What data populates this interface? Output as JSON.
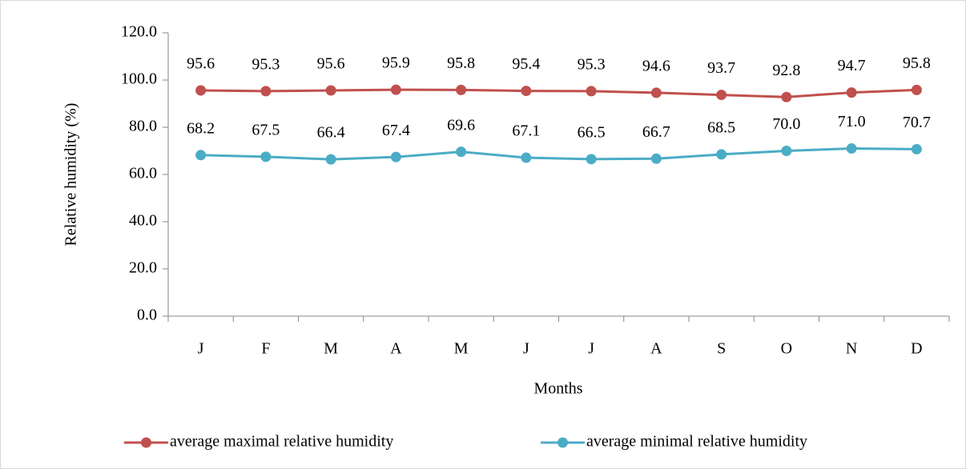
{
  "chart_data": {
    "type": "line",
    "x_label": "Months",
    "y_label": "Relative humidity (%)",
    "categories": [
      "J",
      "F",
      "M",
      "A",
      "M",
      "J",
      "J",
      "A",
      "S",
      "O",
      "N",
      "D"
    ],
    "series": [
      {
        "name": "average maximal relative humidity",
        "color": "#c0504d",
        "values": [
          95.6,
          95.3,
          95.6,
          95.9,
          95.8,
          95.4,
          95.3,
          94.6,
          93.7,
          92.8,
          94.7,
          95.8
        ],
        "value_labels": [
          "95.6",
          "95.3",
          "95.6",
          "95.9",
          "95.8",
          "95.4",
          "95.3",
          "94.6",
          "93.7",
          "92.8",
          "94.7",
          "95.8"
        ]
      },
      {
        "name": "average minimal relative humidity",
        "color": "#4bacc6",
        "values": [
          68.2,
          67.5,
          66.4,
          67.4,
          69.6,
          67.1,
          66.5,
          66.7,
          68.5,
          70,
          71,
          70.7
        ],
        "value_labels": [
          "68.2",
          "67.5",
          "66.4",
          "67.4",
          "69.6",
          "67.1",
          "66.5",
          "66.7",
          "68.5",
          "70.0",
          "71.0",
          "70.7"
        ]
      }
    ],
    "ylim": [
      0,
      120
    ],
    "yticks": [
      {
        "value": 0,
        "label": "0.0"
      },
      {
        "value": 20,
        "label": "20.0"
      },
      {
        "value": 40,
        "label": "40.0"
      },
      {
        "value": 60,
        "label": "60.0"
      },
      {
        "value": 80,
        "label": "80.0"
      },
      {
        "value": 100,
        "label": "100.0"
      },
      {
        "value": 120,
        "label": "120.0"
      }
    ],
    "grid": false,
    "legend": "bottom"
  }
}
